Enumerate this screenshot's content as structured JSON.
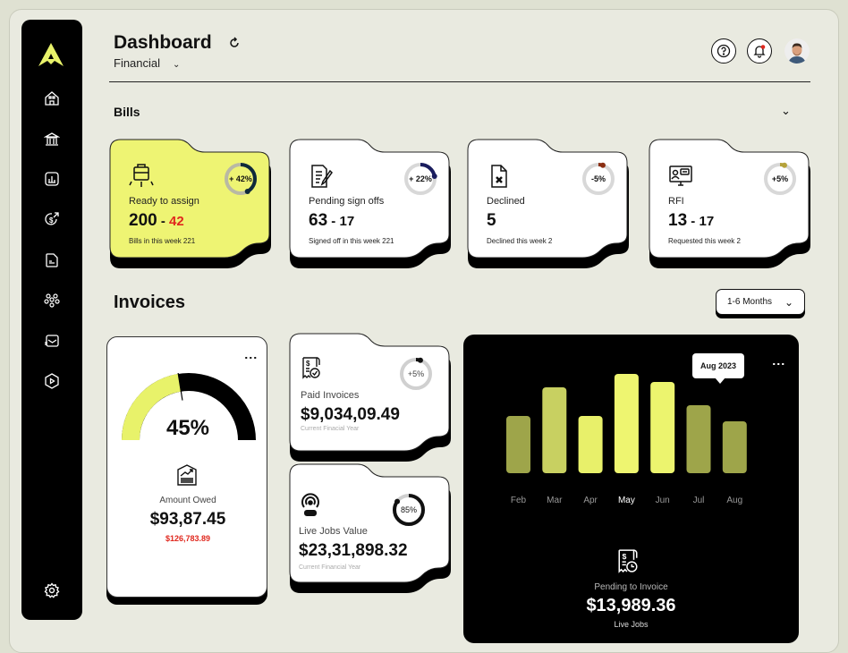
{
  "header": {
    "title": "Dashboard",
    "subtitle": "Financial",
    "icons": [
      "refresh-icon",
      "help-icon",
      "bell-icon",
      "avatar"
    ],
    "notification_color": "#e0281e"
  },
  "sidebar": {
    "logo": "logo-a",
    "items": [
      "home-icon",
      "bank-icon",
      "chart-icon",
      "dollar-icon",
      "document-icon",
      "team-icon",
      "mail-icon",
      "play-icon"
    ],
    "settings": "gear-icon",
    "accent": "#e8f26a"
  },
  "bills": {
    "title": "Bills",
    "cards": [
      {
        "label": "Ready to assign",
        "value": "200",
        "value2": "42",
        "sub": "Bills in this week 221",
        "ring": "+ 42%",
        "pct": 42,
        "ring_color": "#0f2a3a",
        "bg": "#eef473",
        "icon": "briefcase-distribute-icon"
      },
      {
        "label": "Pending sign offs",
        "value": "63",
        "value2": "17",
        "sub": "Signed off in this week 221",
        "ring": "+ 22%",
        "pct": 22,
        "ring_color": "#1a1d5e",
        "bg": "#ffffff",
        "icon": "document-sign-icon"
      },
      {
        "label": "Declined",
        "value": "5",
        "value2": "",
        "sub": "Declined this week 2",
        "ring": "-5%",
        "pct": 5,
        "ring_color": "#8a2e12",
        "bg": "#ffffff",
        "icon": "document-declined-icon"
      },
      {
        "label": "RFI",
        "value": "13",
        "value2": "17",
        "sub": "Requested this week 2",
        "ring": "+5%",
        "pct": 5,
        "ring_color": "#b5a23a",
        "bg": "#ffffff",
        "icon": "monitor-chat-icon"
      }
    ]
  },
  "invoices": {
    "title": "Invoices",
    "range": "1-6 Months",
    "owed": {
      "pct": 45,
      "pct_label": "45%",
      "label": "Amount Owed",
      "value": "$93,87.45",
      "sub": "$126,783.89"
    },
    "paid": {
      "label": "Paid Invoices",
      "value": "$9,034,09.49",
      "sub": "Current Finacial Year",
      "ring": "+5%",
      "pct": 5
    },
    "live": {
      "label": "Live Jobs Value",
      "value": "$23,31,898.32",
      "sub": "Current Financial Year",
      "ring": "85%",
      "pct": 85
    },
    "pending": {
      "label": "Pending to Invoice",
      "value": "$13,989.36",
      "sub": "Live Jobs"
    }
  },
  "chart_data": {
    "type": "bar",
    "categories": [
      "Feb",
      "Mar",
      "Apr",
      "May",
      "Jun",
      "Jul",
      "Aug"
    ],
    "values": [
      64,
      96,
      64,
      111,
      102,
      76,
      58
    ],
    "colors": [
      "#9ea54a",
      "#c8d061",
      "#e8f06a",
      "#eef570",
      "#ecf46e",
      "#9ea54a",
      "#9ea54a"
    ],
    "highlight": "May",
    "tooltip": "Aug 2023",
    "grid": false
  }
}
